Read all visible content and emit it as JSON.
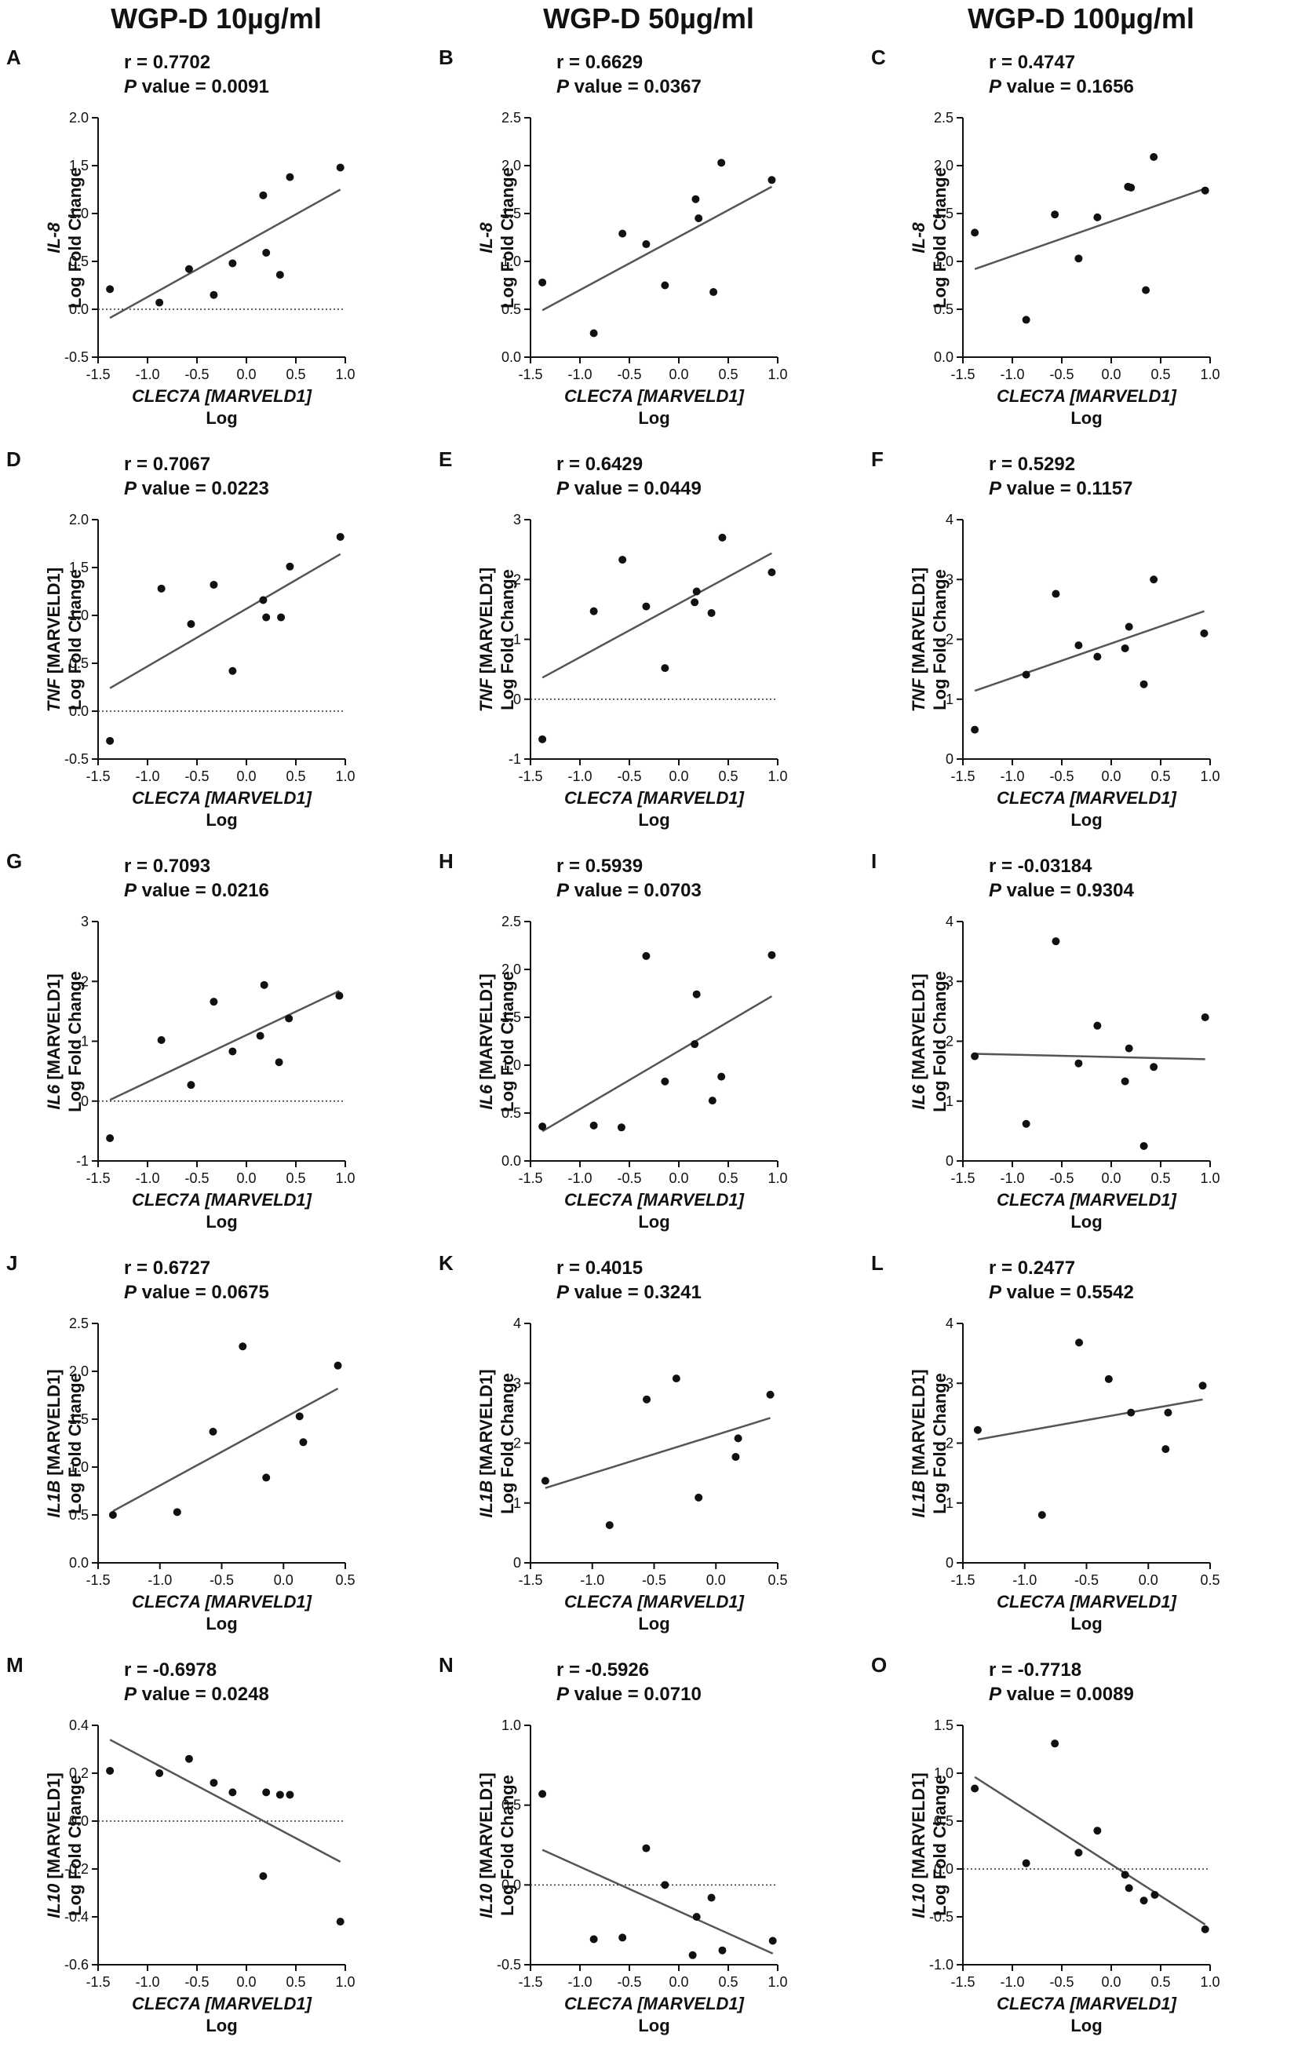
{
  "column_headers": [
    "WGP-D 10µg/ml",
    "WGP-D 50µg/ml",
    "WGP-D 100µg/ml"
  ],
  "p_label": "P",
  "p_suffix": " value = ",
  "x_axis_label": {
    "gene": "CLEC7A",
    "ref": " [MARVELD1]",
    "line2": "Log"
  },
  "y_axis_line2": "Log Fold Change",
  "chart_data": [
    {
      "type": "scatter",
      "letter": "A",
      "r": "r = 0.7702",
      "p": "0.0091",
      "ygene": "IL-8",
      "yref": "",
      "xlim": [
        -1.5,
        1.0
      ],
      "xticks": [
        "-1.5",
        "-1.0",
        "-0.5",
        "0.0",
        "0.5",
        "1.0"
      ],
      "ylim": [
        -0.5,
        2.0
      ],
      "yticks": [
        "-0.5",
        "0.0",
        "0.5",
        "1.0",
        "1.5",
        "2.0"
      ],
      "zero_line": true,
      "x": [
        -1.38,
        -0.88,
        -0.58,
        -0.33,
        -0.14,
        0.17,
        0.2,
        0.34,
        0.44,
        0.95
      ],
      "y": [
        0.21,
        0.07,
        0.42,
        0.15,
        0.48,
        1.19,
        0.59,
        0.36,
        1.38,
        1.48
      ],
      "fit": [
        [
          -1.38,
          -0.09
        ],
        [
          0.95,
          1.25
        ]
      ]
    },
    {
      "type": "scatter",
      "letter": "B",
      "r": "r = 0.6629",
      "p": "0.0367",
      "ygene": "IL-8",
      "yref": "",
      "xlim": [
        -1.5,
        1.0
      ],
      "xticks": [
        "-1.5",
        "-1.0",
        "-0.5",
        "0.0",
        "0.5",
        "1.0"
      ],
      "ylim": [
        0.0,
        2.5
      ],
      "yticks": [
        "0.0",
        "0.5",
        "1.0",
        "1.5",
        "2.0",
        "2.5"
      ],
      "zero_line": false,
      "x": [
        -1.38,
        -0.86,
        -0.57,
        -0.33,
        -0.14,
        0.17,
        0.2,
        0.35,
        0.43,
        0.94
      ],
      "y": [
        0.78,
        0.25,
        1.29,
        1.18,
        0.75,
        1.65,
        1.45,
        0.68,
        2.03,
        1.85
      ],
      "fit": [
        [
          -1.38,
          0.49
        ],
        [
          0.94,
          1.78
        ]
      ]
    },
    {
      "type": "scatter",
      "letter": "C",
      "r": "r = 0.4747",
      "p": "0.1656",
      "ygene": "IL-8",
      "yref": "",
      "xlim": [
        -1.5,
        1.0
      ],
      "xticks": [
        "-1.5",
        "-1.0",
        "-0.5",
        "0.0",
        "0.5",
        "1.0"
      ],
      "ylim": [
        0.0,
        2.5
      ],
      "yticks": [
        "0.0",
        "0.5",
        "1.0",
        "1.5",
        "2.0",
        "2.5"
      ],
      "zero_line": false,
      "x": [
        -1.38,
        -0.86,
        -0.57,
        -0.33,
        -0.14,
        0.17,
        0.2,
        0.35,
        0.43,
        0.95
      ],
      "y": [
        1.3,
        0.39,
        1.49,
        1.03,
        1.46,
        1.78,
        1.77,
        0.7,
        2.09,
        1.74
      ],
      "fit": [
        [
          -1.38,
          0.92
        ],
        [
          0.95,
          1.76
        ]
      ]
    },
    {
      "type": "scatter",
      "letter": "D",
      "r": "r = 0.7067",
      "p": "0.0223",
      "ygene": "TNF",
      "yref": " [MARVELD1]",
      "xlim": [
        -1.5,
        1.0
      ],
      "xticks": [
        "-1.5",
        "-1.0",
        "-0.5",
        "0.0",
        "0.5",
        "1.0"
      ],
      "ylim": [
        -0.5,
        2.0
      ],
      "yticks": [
        "-0.5",
        "0.0",
        "0.5",
        "1.0",
        "1.5",
        "2.0"
      ],
      "zero_line": true,
      "x": [
        -1.38,
        -0.86,
        -0.56,
        -0.33,
        -0.14,
        0.17,
        0.2,
        0.35,
        0.44,
        0.95
      ],
      "y": [
        -0.31,
        1.28,
        0.91,
        1.32,
        0.42,
        1.16,
        0.98,
        0.98,
        1.51,
        1.82
      ],
      "fit": [
        [
          -1.38,
          0.24
        ],
        [
          0.95,
          1.64
        ]
      ]
    },
    {
      "type": "scatter",
      "letter": "E",
      "r": "r = 0.6429",
      "p": "0.0449",
      "ygene": "TNF",
      "yref": " [MARVELD1]",
      "xlim": [
        -1.5,
        1.0
      ],
      "xticks": [
        "-1.5",
        "-1.0",
        "-0.5",
        "0.0",
        "0.5",
        "1.0"
      ],
      "ylim": [
        -1,
        3
      ],
      "yticks": [
        "-1",
        "0",
        "1",
        "2",
        "3"
      ],
      "zero_line": true,
      "x": [
        -1.38,
        -0.86,
        -0.57,
        -0.33,
        -0.14,
        0.16,
        0.18,
        0.33,
        0.44,
        0.94
      ],
      "y": [
        -0.67,
        1.47,
        2.33,
        1.55,
        0.52,
        1.62,
        1.8,
        1.44,
        2.7,
        2.12
      ],
      "fit": [
        [
          -1.38,
          0.36
        ],
        [
          0.94,
          2.44
        ]
      ]
    },
    {
      "type": "scatter",
      "letter": "F",
      "r": "r = 0.5292",
      "p": "0.1157",
      "ygene": "TNF",
      "yref": " [MARVELD1]",
      "xlim": [
        -1.5,
        1.0
      ],
      "xticks": [
        "-1.5",
        "-1.0",
        "-0.5",
        "0.0",
        "0.5",
        "1.0"
      ],
      "ylim": [
        0,
        4
      ],
      "yticks": [
        "0",
        "1",
        "2",
        "3",
        "4"
      ],
      "zero_line": false,
      "x": [
        -1.38,
        -0.86,
        -0.56,
        -0.33,
        -0.14,
        0.14,
        0.18,
        0.33,
        0.43,
        0.94
      ],
      "y": [
        0.49,
        1.41,
        2.76,
        1.9,
        1.71,
        1.85,
        2.21,
        1.25,
        3.0,
        2.1
      ],
      "fit": [
        [
          -1.38,
          1.14
        ],
        [
          0.94,
          2.47
        ]
      ]
    },
    {
      "type": "scatter",
      "letter": "G",
      "r": "r = 0.7093",
      "p": "0.0216",
      "ygene": "IL6",
      "yref": " [MARVELD1]",
      "xlim": [
        -1.5,
        1.0
      ],
      "xticks": [
        "-1.5",
        "-1.0",
        "-0.5",
        "0.0",
        "0.5",
        "1.0"
      ],
      "ylim": [
        -1,
        3
      ],
      "yticks": [
        "-1",
        "0",
        "1",
        "2",
        "3"
      ],
      "zero_line": true,
      "x": [
        -1.38,
        -0.86,
        -0.56,
        -0.33,
        -0.14,
        0.14,
        0.18,
        0.33,
        0.43,
        0.94
      ],
      "y": [
        -0.62,
        1.02,
        0.27,
        1.66,
        0.83,
        1.09,
        1.94,
        0.65,
        1.38,
        1.76
      ],
      "fit": [
        [
          -1.38,
          0.02
        ],
        [
          0.94,
          1.84
        ]
      ]
    },
    {
      "type": "scatter",
      "letter": "H",
      "r": "r = 0.5939",
      "p": "0.0703",
      "ygene": "IL6",
      "yref": " [MARVELD1]",
      "xlim": [
        -1.5,
        1.0
      ],
      "xticks": [
        "-1.5",
        "-1.0",
        "-0.5",
        "0.0",
        "0.5",
        "1.0"
      ],
      "ylim": [
        0.0,
        2.5
      ],
      "yticks": [
        "0.0",
        "0.5",
        "1.0",
        "1.5",
        "2.0",
        "2.5"
      ],
      "zero_line": false,
      "x": [
        -1.38,
        -0.86,
        -0.58,
        -0.33,
        -0.14,
        0.16,
        0.18,
        0.34,
        0.43,
        0.94
      ],
      "y": [
        0.36,
        0.37,
        0.35,
        2.14,
        0.83,
        1.22,
        1.74,
        0.63,
        0.88,
        2.15
      ],
      "fit": [
        [
          -1.38,
          0.31
        ],
        [
          0.94,
          1.72
        ]
      ]
    },
    {
      "type": "scatter",
      "letter": "I",
      "r": "r = -0.03184",
      "p": "0.9304",
      "ygene": "IL6",
      "yref": " [MARVELD1]",
      "xlim": [
        -1.5,
        1.0
      ],
      "xticks": [
        "-1.5",
        "-1.0",
        "-0.5",
        "0.0",
        "0.5",
        "1.0"
      ],
      "ylim": [
        0,
        4
      ],
      "yticks": [
        "0",
        "1",
        "2",
        "3",
        "4"
      ],
      "zero_line": false,
      "x": [
        -1.38,
        -0.86,
        -0.56,
        -0.33,
        -0.14,
        0.14,
        0.18,
        0.33,
        0.43,
        0.95
      ],
      "y": [
        1.75,
        0.62,
        3.67,
        1.63,
        2.26,
        1.33,
        1.88,
        0.25,
        1.57,
        2.4
      ],
      "fit": [
        [
          -1.38,
          1.79
        ],
        [
          0.95,
          1.7
        ]
      ]
    },
    {
      "type": "scatter",
      "letter": "J",
      "r": "r = 0.6727",
      "p": "0.0675",
      "ygene": "IL1B",
      "yref": " [MARVELD1]",
      "xlim": [
        -1.5,
        0.5
      ],
      "xticks": [
        "-1.5",
        "-1.0",
        "-0.5",
        "0.0",
        "0.5"
      ],
      "ylim": [
        0.0,
        2.5
      ],
      "yticks": [
        "0.0",
        "0.5",
        "1.0",
        "1.5",
        "2.0",
        "2.5"
      ],
      "zero_line": false,
      "x": [
        -1.38,
        -0.86,
        -0.57,
        -0.33,
        -0.14,
        0.13,
        0.16,
        0.44
      ],
      "y": [
        0.5,
        0.53,
        1.37,
        2.26,
        0.89,
        1.53,
        1.26,
        2.06
      ],
      "fit": [
        [
          -1.38,
          0.54
        ],
        [
          0.44,
          1.82
        ]
      ]
    },
    {
      "type": "scatter",
      "letter": "K",
      "r": "r = 0.4015",
      "p": "0.3241",
      "ygene": "IL1B",
      "yref": " [MARVELD1]",
      "xlim": [
        -1.5,
        0.5
      ],
      "xticks": [
        "-1.5",
        "-1.0",
        "-0.5",
        "0.0",
        "0.5"
      ],
      "ylim": [
        0,
        4
      ],
      "yticks": [
        "0",
        "1",
        "2",
        "3",
        "4"
      ],
      "zero_line": false,
      "x": [
        -1.38,
        -0.86,
        -0.56,
        -0.32,
        -0.14,
        0.16,
        0.18,
        0.44
      ],
      "y": [
        1.37,
        0.63,
        2.73,
        3.08,
        1.09,
        1.77,
        2.08,
        2.81
      ],
      "fit": [
        [
          -1.38,
          1.25
        ],
        [
          0.44,
          2.42
        ]
      ]
    },
    {
      "type": "scatter",
      "letter": "L",
      "r": "r = 0.2477",
      "p": "0.5542",
      "ygene": "IL1B",
      "yref": " [MARVELD1]",
      "xlim": [
        -1.5,
        0.5
      ],
      "xticks": [
        "-1.5",
        "-1.0",
        "-0.5",
        "0.0",
        "0.5"
      ],
      "ylim": [
        0,
        4
      ],
      "yticks": [
        "0",
        "1",
        "2",
        "3",
        "4"
      ],
      "zero_line": false,
      "x": [
        -1.38,
        -0.86,
        -0.56,
        -0.32,
        -0.14,
        0.14,
        0.16,
        0.44
      ],
      "y": [
        2.22,
        0.8,
        3.68,
        3.07,
        2.51,
        1.9,
        2.51,
        2.96
      ],
      "fit": [
        [
          -1.38,
          2.06
        ],
        [
          0.44,
          2.73
        ]
      ]
    },
    {
      "type": "scatter",
      "letter": "M",
      "r": "r = -0.6978",
      "p": "0.0248",
      "ygene": "IL10",
      "yref": " [MARVELD1]",
      "xlim": [
        -1.5,
        1.0
      ],
      "xticks": [
        "-1.5",
        "-1.0",
        "-0.5",
        "0.0",
        "0.5",
        "1.0"
      ],
      "ylim": [
        -0.6,
        0.4
      ],
      "yticks": [
        "-0.6",
        "-0.4",
        "-0.2",
        "0.0",
        "0.2",
        "0.4"
      ],
      "zero_line": true,
      "x": [
        -1.38,
        -0.88,
        -0.58,
        -0.33,
        -0.14,
        0.17,
        0.2,
        0.34,
        0.44,
        0.95
      ],
      "y": [
        0.21,
        0.2,
        0.26,
        0.16,
        0.12,
        -0.23,
        0.12,
        0.11,
        0.11,
        -0.42
      ],
      "fit": [
        [
          -1.38,
          0.34
        ],
        [
          0.95,
          -0.17
        ]
      ]
    },
    {
      "type": "scatter",
      "letter": "N",
      "r": "r = -0.5926",
      "p": "0.0710",
      "ygene": "IL10",
      "yref": " [MARVELD1]",
      "xlim": [
        -1.5,
        1.0
      ],
      "xticks": [
        "-1.5",
        "-1.0",
        "-0.5",
        "0.0",
        "0.5",
        "1.0"
      ],
      "ylim": [
        -0.5,
        1.0
      ],
      "yticks": [
        "-0.5",
        "0.0",
        "0.5",
        "1.0"
      ],
      "zero_line": true,
      "x": [
        -1.38,
        -0.86,
        -0.57,
        -0.33,
        -0.14,
        0.14,
        0.18,
        0.33,
        0.44,
        0.95
      ],
      "y": [
        0.57,
        -0.34,
        -0.33,
        0.23,
        0.0,
        -0.44,
        -0.2,
        -0.08,
        -0.41,
        -0.35
      ],
      "fit": [
        [
          -1.38,
          0.22
        ],
        [
          0.95,
          -0.43
        ]
      ]
    },
    {
      "type": "scatter",
      "letter": "O",
      "r": "r = -0.7718",
      "p": "0.0089",
      "ygene": "IL10",
      "yref": " [MARVELD1]",
      "xlim": [
        -1.5,
        1.0
      ],
      "xticks": [
        "-1.5",
        "-1.0",
        "-0.5",
        "0.0",
        "0.5",
        "1.0"
      ],
      "ylim": [
        -1.0,
        1.5
      ],
      "yticks": [
        "-1.0",
        "-0.5",
        "0.0",
        "0.5",
        "1.0",
        "1.5"
      ],
      "zero_line": true,
      "x": [
        -1.38,
        -0.86,
        -0.57,
        -0.33,
        -0.14,
        0.14,
        0.18,
        0.33,
        0.44,
        0.95
      ],
      "y": [
        0.84,
        0.06,
        1.31,
        0.17,
        0.4,
        -0.06,
        -0.2,
        -0.33,
        -0.27,
        -0.63
      ],
      "fit": [
        [
          -1.38,
          0.96
        ],
        [
          0.95,
          -0.58
        ]
      ]
    }
  ]
}
